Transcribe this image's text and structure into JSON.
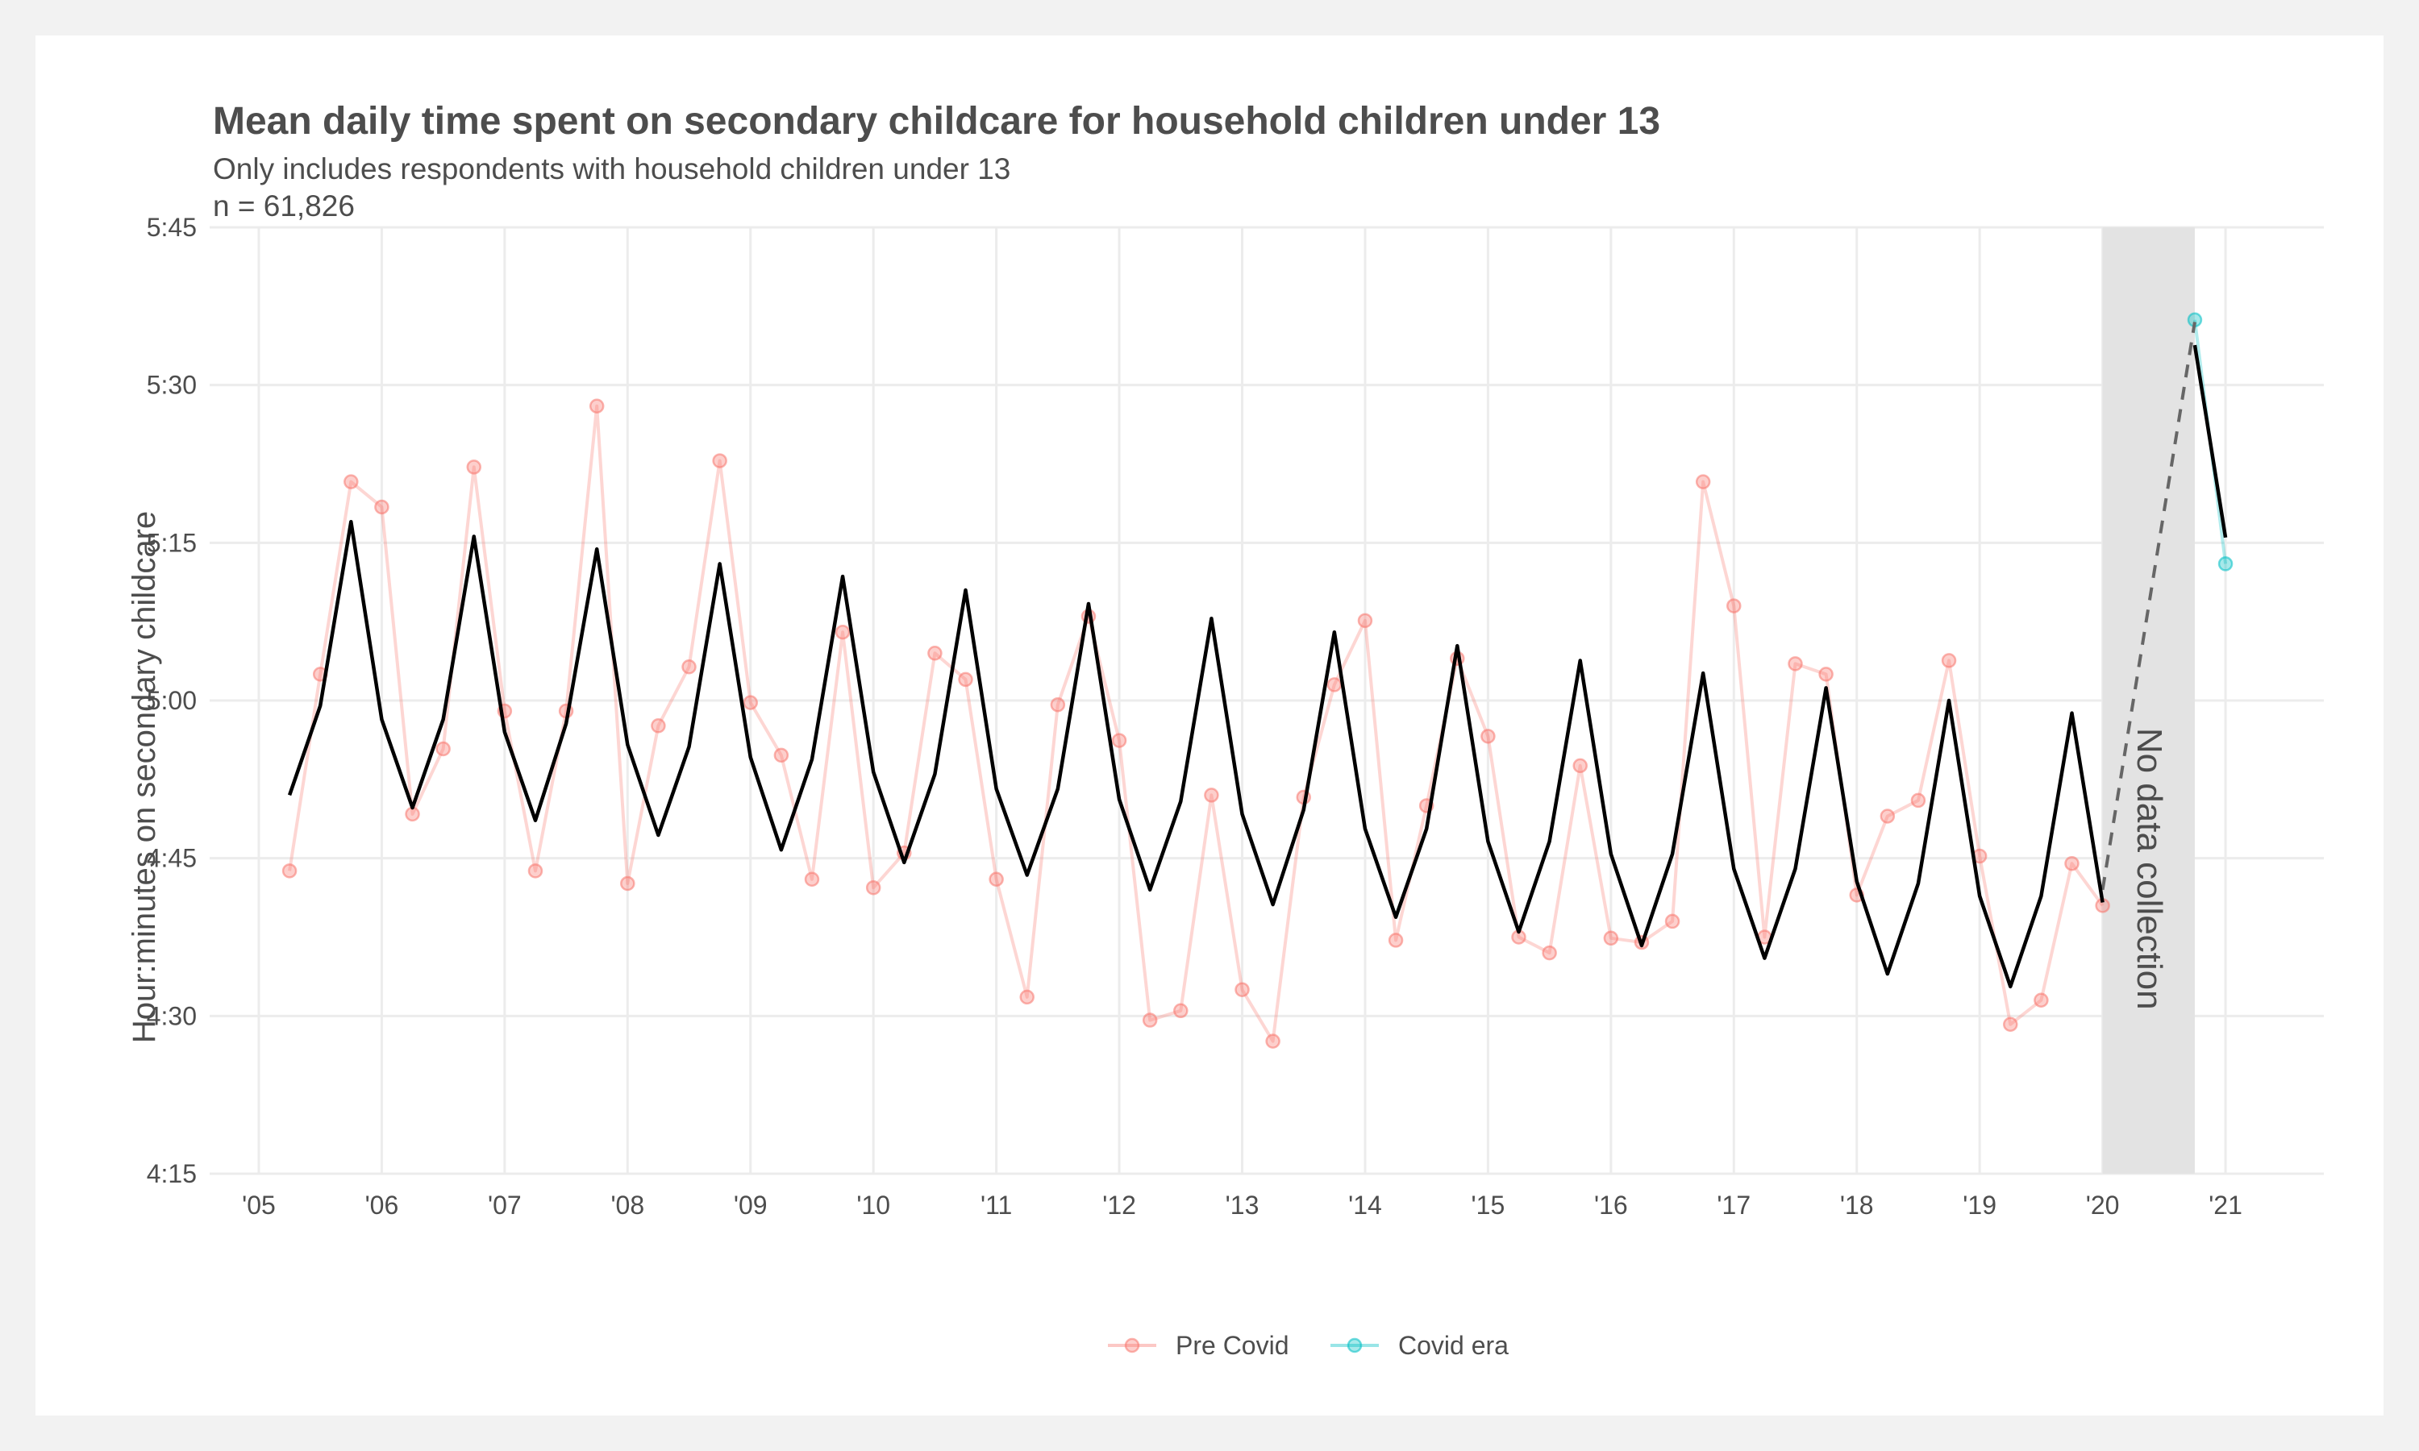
{
  "chart_data": {
    "type": "line",
    "title": "Mean daily time spent on secondary childcare for household children under 13",
    "subtitle_lines": [
      "Only includes respondents with household children under 13",
      "n = 61,826"
    ],
    "ylabel": "Hour:minutes on secondary childcare",
    "xlabel": "",
    "x_unit": "year",
    "ylim_minutes": [
      255,
      345
    ],
    "xlim_years": [
      2004.6,
      2021.8
    ],
    "y_ticks": [
      {
        "value": 255,
        "label": "4:15"
      },
      {
        "value": 270,
        "label": "4:30"
      },
      {
        "value": 285,
        "label": "4:45"
      },
      {
        "value": 300,
        "label": "5:00"
      },
      {
        "value": 315,
        "label": "5:15"
      },
      {
        "value": 330,
        "label": "5:30"
      },
      {
        "value": 345,
        "label": "5:45"
      }
    ],
    "x_ticks": [
      {
        "value": 2005,
        "label": "'05"
      },
      {
        "value": 2006,
        "label": "'06"
      },
      {
        "value": 2007,
        "label": "'07"
      },
      {
        "value": 2008,
        "label": "'08"
      },
      {
        "value": 2009,
        "label": "'09"
      },
      {
        "value": 2010,
        "label": "'10"
      },
      {
        "value": 2011,
        "label": "'11"
      },
      {
        "value": 2012,
        "label": "'12"
      },
      {
        "value": 2013,
        "label": "'13"
      },
      {
        "value": 2014,
        "label": "'14"
      },
      {
        "value": 2015,
        "label": "'15"
      },
      {
        "value": 2016,
        "label": "'16"
      },
      {
        "value": 2017,
        "label": "'17"
      },
      {
        "value": 2018,
        "label": "'18"
      },
      {
        "value": 2019,
        "label": "'19"
      },
      {
        "value": 2020,
        "label": "'20"
      },
      {
        "value": 2021,
        "label": "'21"
      }
    ],
    "grid": true,
    "legend_placement": "bottom",
    "series": [
      {
        "name": "Pre Covid",
        "color": "#f8766d",
        "x": [
          2005.25,
          2005.5,
          2005.75,
          2006.0,
          2006.25,
          2006.5,
          2006.75,
          2007.0,
          2007.25,
          2007.5,
          2007.75,
          2008.0,
          2008.25,
          2008.5,
          2008.75,
          2009.0,
          2009.25,
          2009.5,
          2009.75,
          2010.0,
          2010.25,
          2010.5,
          2010.75,
          2011.0,
          2011.25,
          2011.5,
          2011.75,
          2012.0,
          2012.25,
          2012.5,
          2012.75,
          2013.0,
          2013.25,
          2013.5,
          2013.75,
          2014.0,
          2014.25,
          2014.5,
          2014.75,
          2015.0,
          2015.25,
          2015.5,
          2015.75,
          2016.0,
          2016.25,
          2016.5,
          2016.75,
          2017.0,
          2017.25,
          2017.5,
          2017.75,
          2018.0,
          2018.25,
          2018.5,
          2018.75,
          2019.0,
          2019.25,
          2019.5,
          2019.75,
          2020.0
        ],
        "values": [
          283.8,
          302.5,
          320.8,
          318.4,
          289.2,
          295.4,
          322.2,
          299.0,
          283.8,
          299.0,
          328.0,
          282.6,
          297.6,
          303.2,
          322.8,
          299.8,
          294.8,
          283.0,
          306.5,
          282.2,
          285.5,
          304.5,
          302.0,
          283.0,
          271.8,
          299.6,
          308.0,
          296.2,
          269.6,
          270.5,
          291.0,
          272.5,
          267.6,
          290.8,
          301.5,
          307.6,
          277.2,
          290.0,
          304.0,
          296.6,
          277.5,
          276.0,
          293.8,
          277.4,
          277.0,
          279.0,
          320.8,
          309.0,
          277.5,
          303.5,
          302.5,
          281.5,
          289.0,
          290.5,
          303.8,
          285.2,
          269.2,
          271.5,
          284.5,
          280.5
        ]
      },
      {
        "name": "Covid era",
        "color": "#00bfc4",
        "x": [
          2020.75,
          2021.0
        ],
        "values": [
          336.2,
          313.0
        ]
      }
    ],
    "trend_line": {
      "color": "#000000",
      "x": [
        2005.25,
        2005.5,
        2005.75,
        2006.0,
        2006.25,
        2006.5,
        2006.75,
        2007.0,
        2007.25,
        2007.5,
        2007.75,
        2008.0,
        2008.25,
        2008.5,
        2008.75,
        2009.0,
        2009.25,
        2009.5,
        2009.75,
        2010.0,
        2010.25,
        2010.5,
        2010.75,
        2011.0,
        2011.25,
        2011.5,
        2011.75,
        2012.0,
        2012.25,
        2012.5,
        2012.75,
        2013.0,
        2013.25,
        2013.5,
        2013.75,
        2014.0,
        2014.25,
        2014.5,
        2014.75,
        2015.0,
        2015.25,
        2015.5,
        2015.75,
        2016.0,
        2016.25,
        2016.5,
        2016.75,
        2017.0,
        2017.25,
        2017.5,
        2017.75,
        2018.0,
        2018.25,
        2018.5,
        2018.75,
        2019.0,
        2019.25,
        2019.5,
        2019.75,
        2020.0
      ],
      "values": [
        291.0,
        299.5,
        317.0,
        298.2,
        289.8,
        298.2,
        315.6,
        297.0,
        288.6,
        297.8,
        314.4,
        295.8,
        287.2,
        295.6,
        313.0,
        294.6,
        285.8,
        294.4,
        311.8,
        293.2,
        284.6,
        293.0,
        310.5,
        291.6,
        283.4,
        291.6,
        309.2,
        290.6,
        282.0,
        290.4,
        307.8,
        289.2,
        280.6,
        289.6,
        306.5,
        287.8,
        279.4,
        287.8,
        305.2,
        286.6,
        278.0,
        286.6,
        303.8,
        285.4,
        276.7,
        285.4,
        302.6,
        284.0,
        275.5,
        284.0,
        301.2,
        282.8,
        274.0,
        282.6,
        300.0,
        281.4,
        272.8,
        281.4,
        298.8,
        280.8
      ]
    },
    "trend_line_covid": {
      "color": "#000000",
      "x": [
        2020.75,
        2021.0
      ],
      "values": [
        333.8,
        315.5
      ]
    },
    "gap_connector": {
      "style": "dashed",
      "color": "#666666",
      "x": [
        2020.0,
        2020.75
      ],
      "values": [
        282.0,
        336.0
      ]
    },
    "annotation": {
      "text": "No data collection",
      "x_range": [
        2020.0,
        2020.75
      ],
      "y_range": [
        255,
        345
      ],
      "fill": "#e3e3e3"
    },
    "legend": [
      {
        "label": "Pre Covid",
        "color": "#f8766d"
      },
      {
        "label": "Covid era",
        "color": "#00bfc4"
      }
    ]
  }
}
